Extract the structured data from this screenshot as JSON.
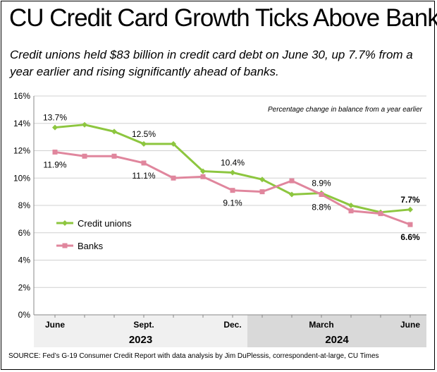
{
  "title": "CU Credit Card Growth Ticks Above Banks",
  "subtitle": "Credit unions held $83 billion in credit card debt on June 30, up 7.7% from a year earlier and rising significantly ahead of banks.",
  "source": "SOURCE: Fed’s G-19 Consumer Credit Report with data analysis by Jim DuPlessis, correspondent-at-large, CU Times",
  "colors": {
    "credit_unions": "#8dc63f",
    "banks": "#e0869d",
    "grid": "#d0d0d0",
    "year_band_2023": "#f0f0f0",
    "year_band_2024": "#d9d9d9"
  },
  "chart_data": {
    "type": "line",
    "annotation": "Percentage change in balance from a year earlier",
    "ylim": [
      0,
      16
    ],
    "yticks": [
      "0%",
      "2%",
      "4%",
      "6%",
      "8%",
      "10%",
      "12%",
      "14%",
      "16%"
    ],
    "grid": true,
    "legend": "left-middle",
    "x_month_labels": [
      {
        "label": "June",
        "index": 0
      },
      {
        "label": "Sept.",
        "index": 3
      },
      {
        "label": "Dec.",
        "index": 6
      },
      {
        "label": "March",
        "index": 9
      },
      {
        "label": "June",
        "index": 12
      }
    ],
    "years": [
      {
        "label": "2023",
        "from": 0,
        "to": 6
      },
      {
        "label": "2024",
        "from": 7,
        "to": 12
      }
    ],
    "series": [
      {
        "name": "Credit unions",
        "marker": "diamond",
        "values": [
          13.7,
          13.9,
          13.4,
          12.5,
          12.5,
          10.5,
          10.4,
          9.9,
          8.8,
          8.9,
          8.0,
          7.5,
          7.7
        ],
        "labels": [
          {
            "index": 0,
            "text": "13.7%",
            "pos": "above"
          },
          {
            "index": 3,
            "text": "12.5%",
            "pos": "above"
          },
          {
            "index": 6,
            "text": "10.4%",
            "pos": "above"
          },
          {
            "index": 9,
            "text": "8.9%",
            "pos": "above"
          },
          {
            "index": 12,
            "text": "7.7%",
            "pos": "above",
            "bold": true
          }
        ]
      },
      {
        "name": "Banks",
        "marker": "square",
        "values": [
          11.9,
          11.6,
          11.6,
          11.1,
          10.0,
          10.1,
          9.1,
          9.0,
          9.8,
          8.8,
          7.6,
          7.4,
          6.6
        ],
        "labels": [
          {
            "index": 0,
            "text": "11.9%",
            "pos": "below"
          },
          {
            "index": 3,
            "text": "11.1%",
            "pos": "below"
          },
          {
            "index": 6,
            "text": "9.1%",
            "pos": "below"
          },
          {
            "index": 9,
            "text": "8.8%",
            "pos": "below"
          },
          {
            "index": 12,
            "text": "6.6%",
            "pos": "below",
            "bold": true
          }
        ]
      }
    ]
  }
}
